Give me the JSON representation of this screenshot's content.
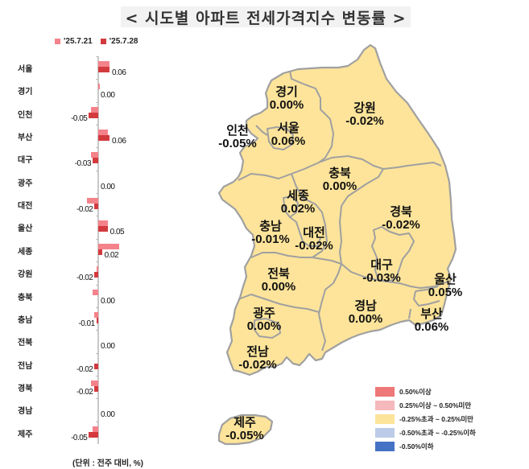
{
  "title": "< 시도별 아파트 전세가격지수 변동률 >",
  "colors": {
    "prev_bar": "#f4828a",
    "curr_bar": "#d33a3e",
    "map_fill": "#fde49a",
    "map_border": "#a0a0a0",
    "title_bg": "#f2f2f2"
  },
  "chart_legend": {
    "prev_label": "'25.7.21",
    "curr_label": "'25.7.28"
  },
  "unit_note": "(단위 : 전주 대비, %)",
  "chart_data": {
    "type": "bar",
    "orientation": "horizontal",
    "title": "시도별 아파트 전세가격지수 변동률",
    "xlabel": "전주 대비 (%)",
    "ylabel": "",
    "categories": [
      "서울",
      "경기",
      "인천",
      "부산",
      "대구",
      "광주",
      "대전",
      "울산",
      "세종",
      "강원",
      "충북",
      "충남",
      "전북",
      "전남",
      "경북",
      "경남",
      "제주"
    ],
    "series": [
      {
        "name": "'25.7.21",
        "values": [
          0.06,
          0.01,
          -0.04,
          0.05,
          -0.04,
          0.0,
          -0.06,
          0.05,
          0.11,
          -0.01,
          -0.03,
          -0.02,
          0.0,
          0.0,
          -0.04,
          0.0,
          -0.03
        ]
      },
      {
        "name": "'25.7.28",
        "values": [
          0.06,
          0.0,
          -0.05,
          0.06,
          -0.03,
          0.0,
          -0.02,
          0.05,
          0.02,
          -0.02,
          0.0,
          -0.01,
          0.0,
          -0.02,
          -0.02,
          0.0,
          -0.05
        ]
      }
    ],
    "data_labels": [
      "0.06",
      "0.00",
      "-0.05",
      "0.06",
      "-0.03",
      "0.00",
      "-0.02",
      "0.05",
      "0.02",
      "-0.02",
      "0.00",
      "-0.01",
      "0.00",
      "-0.02",
      "-0.02",
      "0.00",
      "-0.05"
    ],
    "legend_position": "top"
  },
  "bars": [
    {
      "label": "서울",
      "prev": 0.06,
      "curr": 0.06,
      "text": "0.06"
    },
    {
      "label": "경기",
      "prev": 0.01,
      "curr": 0.0,
      "text": "0.00"
    },
    {
      "label": "인천",
      "prev": -0.04,
      "curr": -0.05,
      "text": "-0.05"
    },
    {
      "label": "부산",
      "prev": 0.05,
      "curr": 0.06,
      "text": "0.06"
    },
    {
      "label": "대구",
      "prev": -0.04,
      "curr": -0.03,
      "text": "-0.03"
    },
    {
      "label": "광주",
      "prev": 0.0,
      "curr": 0.0,
      "text": "0.00"
    },
    {
      "label": "대전",
      "prev": -0.06,
      "curr": -0.02,
      "text": "-0.02"
    },
    {
      "label": "울산",
      "prev": 0.05,
      "curr": 0.05,
      "text": "0.05"
    },
    {
      "label": "세종",
      "prev": 0.11,
      "curr": 0.02,
      "text": "0.02"
    },
    {
      "label": "강원",
      "prev": -0.01,
      "curr": -0.02,
      "text": "-0.02"
    },
    {
      "label": "충북",
      "prev": -0.03,
      "curr": 0.0,
      "text": "0.00"
    },
    {
      "label": "충남",
      "prev": -0.02,
      "curr": -0.01,
      "text": "-0.01"
    },
    {
      "label": "전북",
      "prev": 0.0,
      "curr": 0.0,
      "text": "0.00"
    },
    {
      "label": "전남",
      "prev": 0.0,
      "curr": -0.02,
      "text": "-0.02"
    },
    {
      "label": "경북",
      "prev": -0.04,
      "curr": -0.02,
      "text": "-0.02"
    },
    {
      "label": "경남",
      "prev": 0.0,
      "curr": 0.0,
      "text": "0.00"
    },
    {
      "label": "제주",
      "prev": -0.03,
      "curr": -0.05,
      "text": "-0.05"
    }
  ],
  "map_regions": [
    {
      "name": "경기",
      "value": "0.00%"
    },
    {
      "name": "강원",
      "value": "-0.02%"
    },
    {
      "name": "인천",
      "value": "-0.05%"
    },
    {
      "name": "서울",
      "value": "0.06%"
    },
    {
      "name": "충북",
      "value": "0.00%"
    },
    {
      "name": "세종",
      "value": "0.02%"
    },
    {
      "name": "경북",
      "value": "-0.02%"
    },
    {
      "name": "충남",
      "value": "-0.01%"
    },
    {
      "name": "대전",
      "value": "-0.02%"
    },
    {
      "name": "전북",
      "value": "0.00%"
    },
    {
      "name": "대구",
      "value": "-0.03%"
    },
    {
      "name": "울산",
      "value": "0.05%"
    },
    {
      "name": "광주",
      "value": "0.00%"
    },
    {
      "name": "경남",
      "value": "0.00%"
    },
    {
      "name": "부산",
      "value": "0.06%"
    },
    {
      "name": "전남",
      "value": "-0.02%"
    },
    {
      "name": "제주",
      "value": "-0.05%"
    }
  ],
  "map_legend": [
    {
      "label": "0.50%이상",
      "color": "#ee7777"
    },
    {
      "label": "0.25%이상 ~ 0.50%미만",
      "color": "#f5b8bc"
    },
    {
      "label": "-0.25%초과 ~ 0.25%미만",
      "color": "#fde49a"
    },
    {
      "label": "-0.50%초과 ~ -0.25%이하",
      "color": "#bccbe8"
    },
    {
      "label": "-0.50%이하",
      "color": "#4472c4"
    }
  ]
}
